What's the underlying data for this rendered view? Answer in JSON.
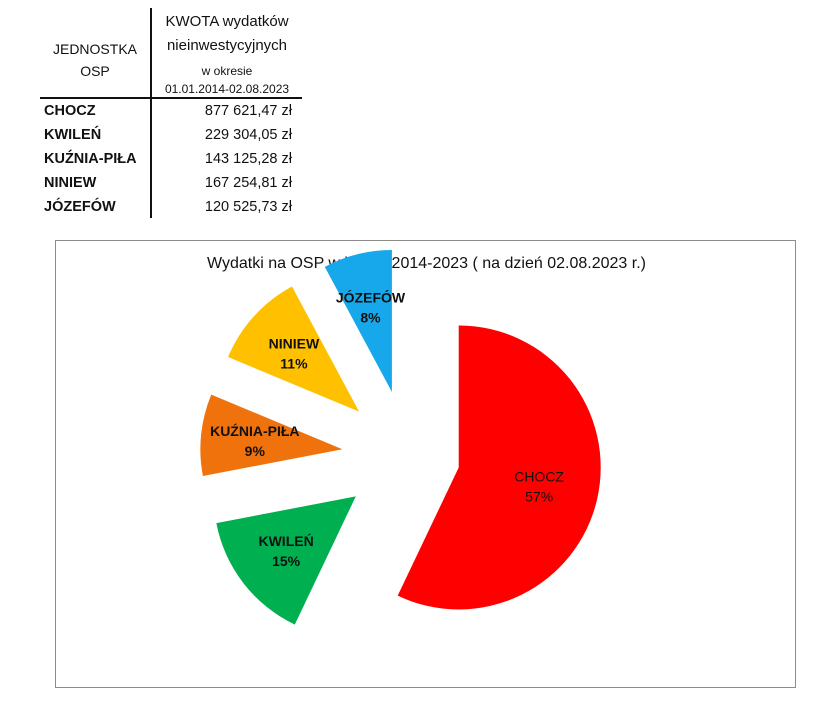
{
  "table": {
    "header_unit_line1": "JEDNOSTKA",
    "header_unit_line2": "OSP",
    "header_amount_line1": "KWOTA wydatków",
    "header_amount_line2": "nieinwestycyjnych",
    "header_amount_line3": "w okresie",
    "header_amount_line4": "01.01.2014-02.08.2023",
    "rows": [
      {
        "name": "CHOCZ",
        "amount": "877 621,47 zł"
      },
      {
        "name": "KWILEŃ",
        "amount": "229 304,05 zł"
      },
      {
        "name": "KUŹNIA-PIŁA",
        "amount": "143 125,28 zł"
      },
      {
        "name": "NINIEW",
        "amount": "167 254,81 zł"
      },
      {
        "name": "JÓZEFÓW",
        "amount": "120 525,73 zł"
      }
    ]
  },
  "chart_data": {
    "type": "pie",
    "title": "Wydatki na OSP w latach 2014-2023 ( na dzień 02.08.2023 r.)",
    "exploded": true,
    "legend": "none",
    "slices": [
      {
        "name": "CHOCZ",
        "value": 877621.47,
        "label": "57%",
        "color": "#ff0000"
      },
      {
        "name": "KWILEŃ",
        "value": 229304.05,
        "label": "15%",
        "color": "#00b050"
      },
      {
        "name": "KUŹNIA-PIŁA",
        "value": 143125.28,
        "label": "9%",
        "color": "#f0720c"
      },
      {
        "name": "NINIEW",
        "value": 167254.81,
        "label": "11%",
        "color": "#ffc000"
      },
      {
        "name": "JÓZEFÓW",
        "value": 120525.73,
        "label": "8%",
        "color": "#16a8ea"
      }
    ]
  }
}
